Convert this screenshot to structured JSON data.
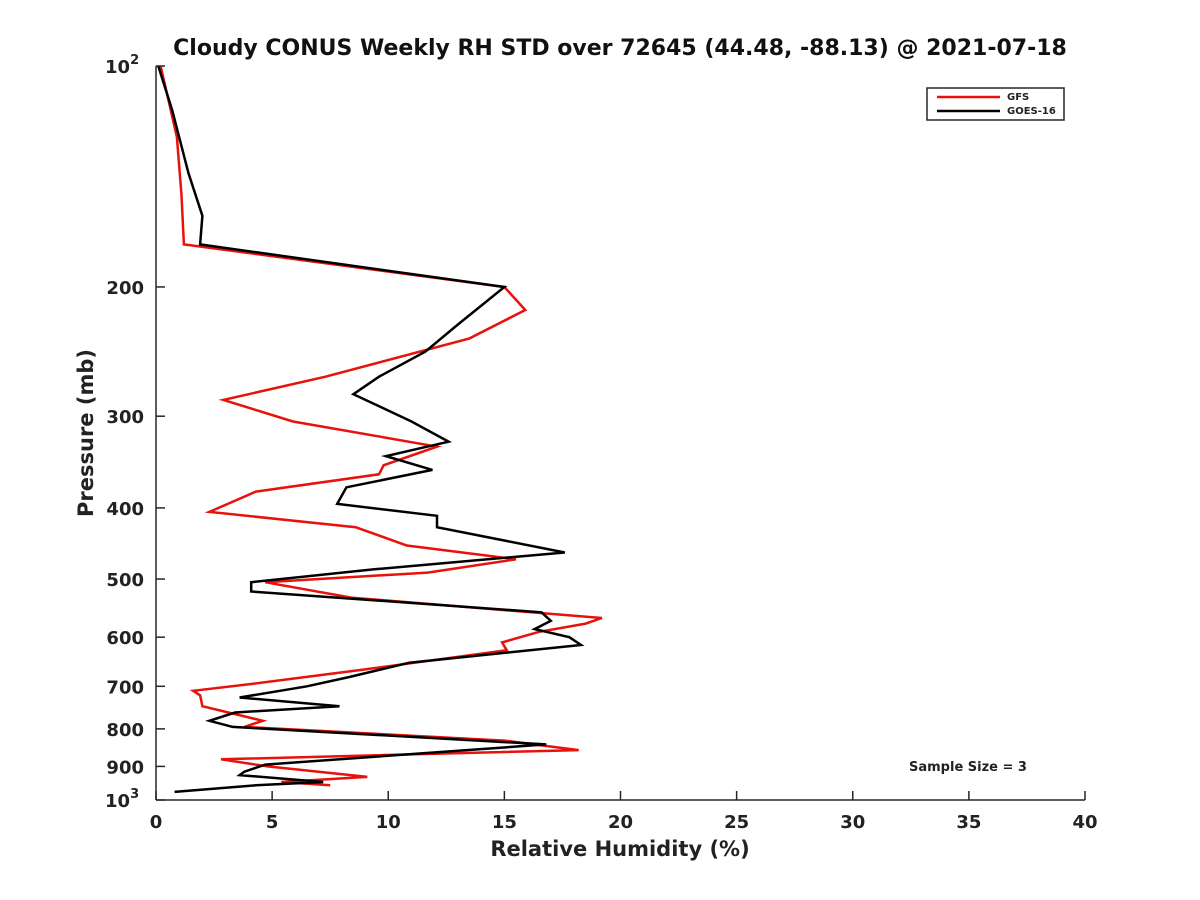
{
  "chart_data": {
    "type": "line",
    "title": "Cloudy CONUS Weekly RH STD over 72645 (44.48, -88.13) @ 2021-07-18",
    "xlabel": "Relative Humidity (%)",
    "ylabel": "Pressure (mb)",
    "xlim": [
      0,
      40
    ],
    "ylim": [
      100,
      1000
    ],
    "y_scale": "log",
    "y_reversed": true,
    "grid": false,
    "legend_position": "top-right",
    "x_ticks": [
      0,
      5,
      10,
      15,
      20,
      25,
      30,
      35,
      40
    ],
    "x_tick_labels": [
      "0",
      "5",
      "10",
      "15",
      "20",
      "25",
      "30",
      "35",
      "40"
    ],
    "y_ticks": [
      100,
      200,
      300,
      400,
      500,
      600,
      700,
      800,
      900,
      1000
    ],
    "y_tick_labels": [
      {
        "base": "10",
        "exp": "2"
      },
      {
        "base": "200",
        "exp": ""
      },
      {
        "base": "300",
        "exp": ""
      },
      {
        "base": "400",
        "exp": ""
      },
      {
        "base": "500",
        "exp": ""
      },
      {
        "base": "600",
        "exp": ""
      },
      {
        "base": "700",
        "exp": ""
      },
      {
        "base": "800",
        "exp": ""
      },
      {
        "base": "900",
        "exp": ""
      },
      {
        "base": "10",
        "exp": "3"
      }
    ],
    "annotation": "Sample Size = 3",
    "series": [
      {
        "name": "GFS",
        "color": "#e8120c",
        "points": [
          [
            0.2,
            100
          ],
          [
            0.5,
            110
          ],
          [
            0.9,
            125
          ],
          [
            1.1,
            150
          ],
          [
            1.2,
            175
          ],
          [
            15.0,
            200
          ],
          [
            15.9,
            215
          ],
          [
            13.5,
            235
          ],
          [
            7.3,
            265
          ],
          [
            2.9,
            285
          ],
          [
            5.9,
            305
          ],
          [
            12.1,
            330
          ],
          [
            9.8,
            350
          ],
          [
            9.6,
            360
          ],
          [
            4.3,
            380
          ],
          [
            2.3,
            405
          ],
          [
            8.6,
            425
          ],
          [
            10.8,
            450
          ],
          [
            15.5,
            470
          ],
          [
            11.7,
            490
          ],
          [
            4.7,
            505
          ],
          [
            8.4,
            530
          ],
          [
            19.2,
            565
          ],
          [
            18.5,
            575
          ],
          [
            16.5,
            590
          ],
          [
            14.9,
            610
          ],
          [
            15.1,
            625
          ],
          [
            8.8,
            665
          ],
          [
            4.1,
            695
          ],
          [
            1.6,
            710
          ],
          [
            1.9,
            720
          ],
          [
            2.0,
            745
          ],
          [
            4.6,
            780
          ],
          [
            3.8,
            795
          ],
          [
            15.0,
            830
          ],
          [
            18.2,
            855
          ],
          [
            2.8,
            880
          ],
          [
            4.8,
            900
          ],
          [
            9.1,
            930
          ],
          [
            5.4,
            945
          ],
          [
            7.5,
            955
          ]
        ]
      },
      {
        "name": "GOES-16",
        "color": "#000000",
        "points": [
          [
            0.1,
            100
          ],
          [
            0.7,
            115
          ],
          [
            1.4,
            140
          ],
          [
            2.0,
            160
          ],
          [
            1.9,
            175
          ],
          [
            15.0,
            200
          ],
          [
            13.0,
            225
          ],
          [
            11.6,
            245
          ],
          [
            9.6,
            265
          ],
          [
            8.5,
            280
          ],
          [
            11.0,
            305
          ],
          [
            12.6,
            325
          ],
          [
            9.9,
            340
          ],
          [
            11.9,
            355
          ],
          [
            8.2,
            375
          ],
          [
            7.8,
            395
          ],
          [
            12.1,
            410
          ],
          [
            12.1,
            425
          ],
          [
            17.6,
            460
          ],
          [
            9.4,
            485
          ],
          [
            4.1,
            505
          ],
          [
            4.1,
            520
          ],
          [
            16.6,
            555
          ],
          [
            17.0,
            570
          ],
          [
            16.3,
            585
          ],
          [
            17.8,
            600
          ],
          [
            18.3,
            615
          ],
          [
            10.9,
            650
          ],
          [
            8.3,
            680
          ],
          [
            6.5,
            700
          ],
          [
            3.6,
            725
          ],
          [
            7.9,
            745
          ],
          [
            3.4,
            760
          ],
          [
            2.3,
            780
          ],
          [
            3.3,
            795
          ],
          [
            16.8,
            840
          ],
          [
            4.7,
            895
          ],
          [
            3.8,
            915
          ],
          [
            3.6,
            925
          ],
          [
            7.2,
            945
          ],
          [
            4.3,
            955
          ],
          [
            0.8,
            975
          ]
        ]
      }
    ]
  }
}
